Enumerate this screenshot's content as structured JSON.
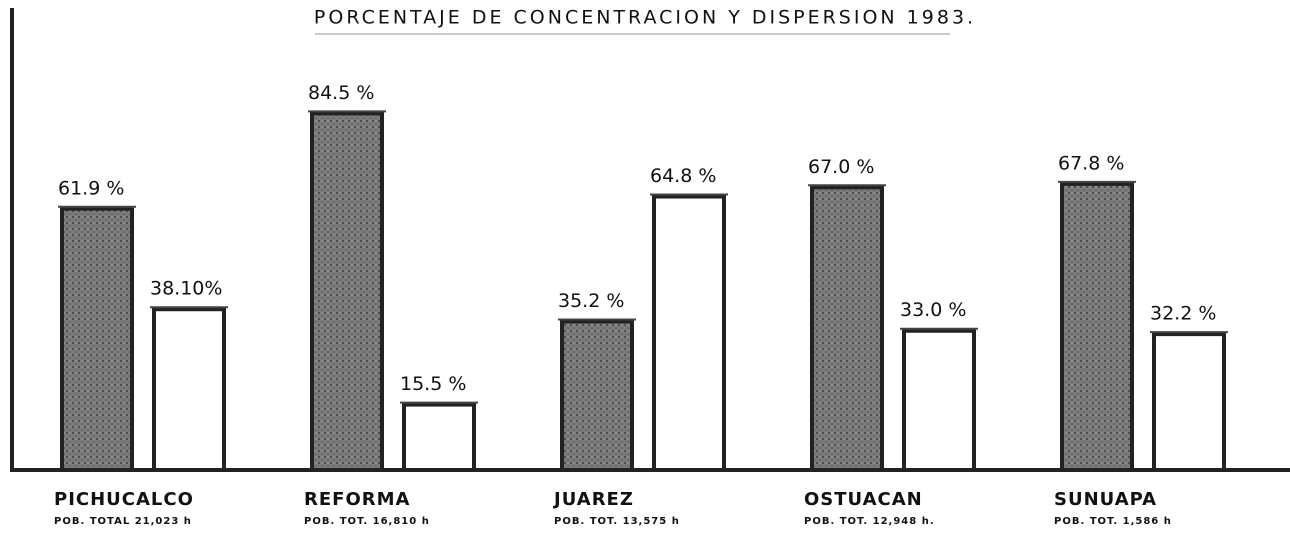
{
  "chart_data": {
    "type": "bar",
    "title": "PORCENTAJE DE CONCENTRACION Y DISPERSION 1983.",
    "categories": [
      "PICHUCALCO",
      "REFORMA",
      "JUAREZ",
      "OSTUACAN",
      "SUNUAPA"
    ],
    "category_notes": [
      "POB. TOTAL 21,023 h",
      "POB. TOT. 16,810 h",
      "POB. TOT. 13,575 h",
      "POB. TOT. 12,948 h.",
      "POB. TOT. 1,586 h"
    ],
    "series": [
      {
        "color": "#7a7a7a",
        "values": [
          61.9,
          84.5,
          35.2,
          67.0,
          67.8
        ],
        "value_labels": [
          "61.9 %",
          "84.5 %",
          "35.2 %",
          "67.0 %",
          "67.8 %"
        ]
      },
      {
        "color": "#ffffff",
        "values": [
          38.1,
          15.5,
          64.8,
          33.0,
          32.2
        ],
        "value_labels": [
          "38.10%",
          "15.5 %",
          "64.8 %",
          "33.0 %",
          "32.2 %"
        ]
      }
    ],
    "ylim": [
      0,
      100
    ]
  }
}
